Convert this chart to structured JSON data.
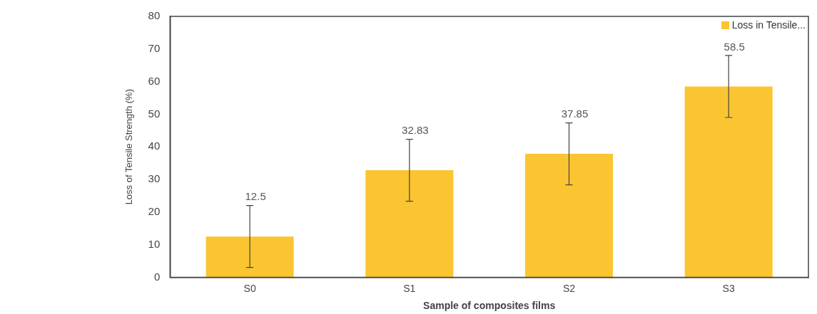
{
  "chart_data": {
    "type": "bar",
    "xlabel": "Sample of composites films",
    "ylabel": "Loss of Tensile Strength (%)",
    "categories": [
      "S0",
      "S1",
      "S2",
      "S3"
    ],
    "series": [
      {
        "name": "Loss in Tensile...",
        "color": "#fbc531",
        "values": [
          12.5,
          32.83,
          37.85,
          58.5
        ],
        "errors": [
          9.5,
          9.5,
          9.5,
          9.5
        ]
      }
    ],
    "ylim": [
      0,
      80
    ],
    "yticks": [
      0,
      10,
      20,
      30,
      40,
      50,
      60,
      70,
      80
    ],
    "grid": false,
    "legend": "top right",
    "data_labels": true
  }
}
